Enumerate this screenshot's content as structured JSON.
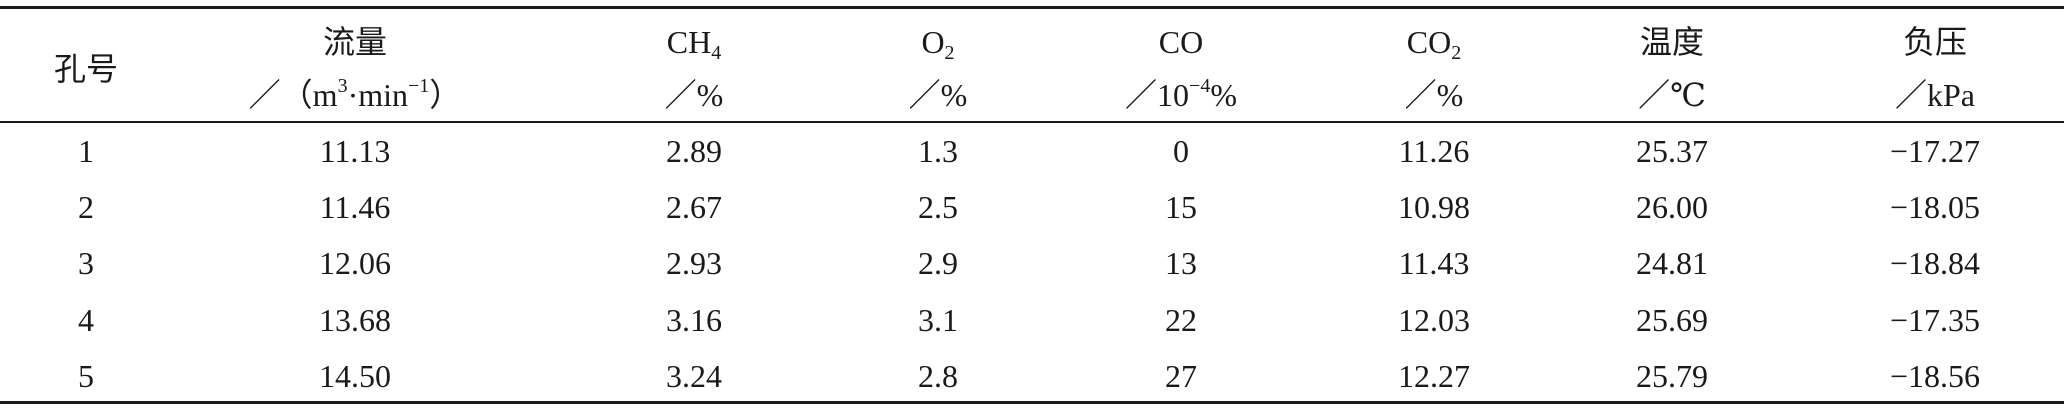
{
  "table": {
    "header": [
      {
        "lines": [
          [
            {
              "text": "孔号"
            }
          ]
        ]
      },
      {
        "lines": [
          [
            {
              "text": "流量"
            }
          ],
          [
            {
              "text": "／（m"
            },
            {
              "sup": "3"
            },
            {
              "text": "·min"
            },
            {
              "sup": "−1"
            },
            {
              "text": "）"
            }
          ]
        ]
      },
      {
        "lines": [
          [
            {
              "text": "CH"
            },
            {
              "sub": "4"
            }
          ],
          [
            {
              "text": "／%"
            }
          ]
        ]
      },
      {
        "lines": [
          [
            {
              "text": "O"
            },
            {
              "sub": "2"
            }
          ],
          [
            {
              "text": "／%"
            }
          ]
        ]
      },
      {
        "lines": [
          [
            {
              "text": "CO"
            }
          ],
          [
            {
              "text": "／10"
            },
            {
              "sup": "−4"
            },
            {
              "text": "%"
            }
          ]
        ]
      },
      {
        "lines": [
          [
            {
              "text": "CO"
            },
            {
              "sub": "2"
            }
          ],
          [
            {
              "text": "／%"
            }
          ]
        ]
      },
      {
        "lines": [
          [
            {
              "text": "温度"
            }
          ],
          [
            {
              "text": "／℃"
            }
          ]
        ]
      },
      {
        "lines": [
          [
            {
              "text": "负压"
            }
          ],
          [
            {
              "text": "／kPa"
            }
          ]
        ]
      }
    ],
    "rows": [
      [
        "1",
        "11.13",
        "2.89",
        "1.3",
        "0",
        "11.26",
        "25.37",
        "−17.27"
      ],
      [
        "2",
        "11.46",
        "2.67",
        "2.5",
        "15",
        "10.98",
        "26.00",
        "−18.05"
      ],
      [
        "3",
        "12.06",
        "2.93",
        "2.9",
        "13",
        "11.43",
        "24.81",
        "−18.84"
      ],
      [
        "4",
        "13.68",
        "3.16",
        "3.1",
        "22",
        "12.03",
        "25.69",
        "−17.35"
      ],
      [
        "5",
        "14.50",
        "3.24",
        "2.8",
        "27",
        "12.27",
        "25.79",
        "−18.56"
      ]
    ]
  }
}
